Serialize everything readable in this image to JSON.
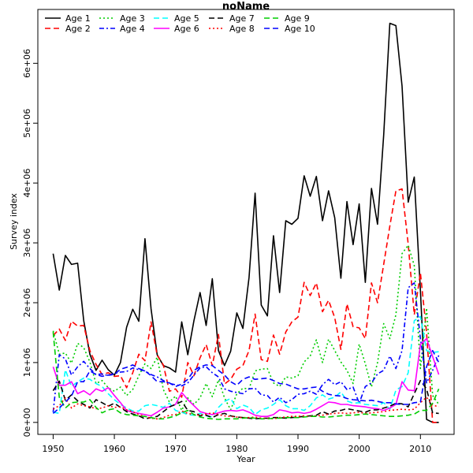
{
  "chart_data": {
    "type": "line",
    "title": "noName",
    "xlabel": "Year",
    "ylabel": "Survey index",
    "xlim": [
      1947.5,
      2015.5
    ],
    "ylim": [
      -200000,
      6900000
    ],
    "x_ticks": [
      1950,
      1960,
      1970,
      1980,
      1990,
      2000,
      2010
    ],
    "y_ticks": [
      0,
      1000000,
      2000000,
      3000000,
      4000000,
      5000000,
      6000000
    ],
    "y_tick_labels": [
      "0e+00",
      "1e+06",
      "2e+06",
      "3e+06",
      "4e+06",
      "5e+06",
      "6e+06"
    ],
    "x_start": 1950,
    "legend_position": "top-left",
    "series": [
      {
        "name": "Age 1",
        "color": "#000000",
        "dash": "solid",
        "values": [
          2820000,
          2210000,
          2790000,
          2640000,
          2660000,
          1700000,
          1140000,
          870000,
          1040000,
          880000,
          790000,
          1000000,
          1590000,
          1890000,
          1690000,
          3070000,
          1900000,
          1130000,
          950000,
          910000,
          840000,
          1680000,
          1130000,
          1700000,
          2170000,
          1620000,
          2400000,
          1200000,
          950000,
          1190000,
          1830000,
          1570000,
          2420000,
          3830000,
          1960000,
          1780000,
          3120000,
          2170000,
          3370000,
          3310000,
          3410000,
          4120000,
          3780000,
          4110000,
          3370000,
          3870000,
          3420000,
          2410000,
          3690000,
          2970000,
          3650000,
          2340000,
          3910000,
          3310000,
          4800000,
          6670000,
          6630000,
          5620000,
          3680000,
          4100000,
          2200000,
          50000,
          0,
          0
        ]
      },
      {
        "name": "Age 2",
        "color": "#ff0000",
        "dash": "dashed",
        "values": [
          1450000,
          1560000,
          1370000,
          1690000,
          1610000,
          1620000,
          1200000,
          970000,
          800000,
          830000,
          770000,
          780000,
          580000,
          830000,
          1140000,
          1030000,
          1680000,
          1120000,
          960000,
          520000,
          560000,
          420000,
          1000000,
          780000,
          1080000,
          1300000,
          950000,
          1470000,
          640000,
          720000,
          890000,
          950000,
          1200000,
          1810000,
          1050000,
          1020000,
          1460000,
          1140000,
          1510000,
          1680000,
          1760000,
          2340000,
          2120000,
          2330000,
          1850000,
          2040000,
          1750000,
          1220000,
          1980000,
          1600000,
          1580000,
          1400000,
          2330000,
          2000000,
          2640000,
          3280000,
          3870000,
          3900000,
          2980000,
          1800000,
          2500000,
          1500000,
          0,
          0
        ]
      },
      {
        "name": "Age 3",
        "color": "#00cd00",
        "dash": "dotted",
        "values": [
          1530000,
          1140000,
          1160000,
          990000,
          1320000,
          1250000,
          1010000,
          650000,
          700000,
          580000,
          520000,
          590000,
          450000,
          550000,
          780000,
          980000,
          900000,
          1090000,
          550000,
          340000,
          440000,
          200000,
          410000,
          300000,
          410000,
          650000,
          430000,
          710000,
          410000,
          210000,
          480000,
          570000,
          560000,
          860000,
          890000,
          900000,
          660000,
          600000,
          760000,
          740000,
          780000,
          1010000,
          1110000,
          1380000,
          1000000,
          1390000,
          1200000,
          1010000,
          870000,
          650000,
          1310000,
          980000,
          590000,
          1000000,
          1650000,
          1400000,
          1800000,
          2820000,
          2960000,
          2620000,
          900000,
          1910000,
          450000,
          300000
        ]
      },
      {
        "name": "Age 4",
        "color": "#0000ff",
        "dash": "dashdot",
        "values": [
          170000,
          1130000,
          1060000,
          790000,
          930000,
          1020000,
          900000,
          800000,
          810000,
          780000,
          820000,
          840000,
          850000,
          910000,
          880000,
          860000,
          800000,
          760000,
          700000,
          650000,
          630000,
          610000,
          660000,
          790000,
          910000,
          930000,
          830000,
          760000,
          560000,
          520000,
          500000,
          480000,
          560000,
          570000,
          460000,
          450000,
          340000,
          420000,
          330000,
          380000,
          470000,
          480000,
          520000,
          470000,
          630000,
          720000,
          630000,
          680000,
          550000,
          590000,
          320000,
          600000,
          660000,
          810000,
          870000,
          1110000,
          900000,
          1200000,
          2250000,
          2330000,
          1400000,
          660000,
          870000,
          1120000
        ]
      },
      {
        "name": "Age 5",
        "color": "#00ffff",
        "dash": "dashed",
        "values": [
          170000,
          150000,
          880000,
          600000,
          680000,
          740000,
          720000,
          650000,
          600000,
          480000,
          380000,
          300000,
          240000,
          190000,
          190000,
          280000,
          300000,
          280000,
          250000,
          320000,
          200000,
          170000,
          130000,
          120000,
          150000,
          110000,
          90000,
          250000,
          350000,
          400000,
          230000,
          290000,
          250000,
          130000,
          210000,
          240000,
          300000,
          380000,
          280000,
          230000,
          230000,
          200000,
          280000,
          410000,
          460000,
          390000,
          420000,
          510000,
          360000,
          320000,
          330000,
          300000,
          290000,
          280000,
          330000,
          220000,
          540000,
          600000,
          830000,
          1700000,
          1770000,
          1200000,
          1170000,
          1180000
        ]
      },
      {
        "name": "Age 6",
        "color": "#ff00ff",
        "dash": "solid",
        "values": [
          930000,
          620000,
          620000,
          680000,
          480000,
          530000,
          460000,
          560000,
          520000,
          580000,
          450000,
          330000,
          200000,
          170000,
          150000,
          130000,
          110000,
          170000,
          240000,
          260000,
          300000,
          500000,
          380000,
          280000,
          180000,
          150000,
          130000,
          160000,
          190000,
          200000,
          190000,
          210000,
          170000,
          120000,
          100000,
          100000,
          130000,
          210000,
          190000,
          160000,
          170000,
          150000,
          170000,
          220000,
          280000,
          340000,
          330000,
          300000,
          300000,
          280000,
          270000,
          260000,
          240000,
          230000,
          200000,
          240000,
          300000,
          680000,
          540000,
          530000,
          1300000,
          1400000,
          1100000,
          800000
        ]
      },
      {
        "name": "Age 7",
        "color": "#000000",
        "dash": "dashed",
        "values": [
          530000,
          690000,
          370000,
          460000,
          360000,
          300000,
          240000,
          380000,
          330000,
          270000,
          320000,
          250000,
          180000,
          140000,
          110000,
          60000,
          80000,
          100000,
          180000,
          260000,
          300000,
          350000,
          200000,
          180000,
          110000,
          120000,
          80000,
          130000,
          150000,
          110000,
          90000,
          80000,
          70000,
          60000,
          70000,
          70000,
          80000,
          80000,
          70000,
          80000,
          90000,
          100000,
          110000,
          120000,
          180000,
          140000,
          190000,
          200000,
          230000,
          210000,
          190000,
          170000,
          210000,
          210000,
          240000,
          270000,
          320000,
          310000,
          260000,
          480000,
          700000,
          560000,
          160000,
          150000
        ]
      },
      {
        "name": "Age 8",
        "color": "#ff0000",
        "dash": "dotted",
        "values": [
          220000,
          280000,
          410000,
          240000,
          310000,
          280000,
          260000,
          230000,
          240000,
          280000,
          250000,
          260000,
          210000,
          180000,
          130000,
          100000,
          70000,
          60000,
          80000,
          120000,
          130000,
          190000,
          150000,
          130000,
          120000,
          140000,
          160000,
          130000,
          110000,
          100000,
          90000,
          80000,
          80000,
          90000,
          70000,
          70000,
          60000,
          80000,
          90000,
          100000,
          100000,
          110000,
          100000,
          110000,
          120000,
          140000,
          150000,
          160000,
          150000,
          160000,
          170000,
          150000,
          160000,
          170000,
          180000,
          200000,
          210000,
          220000,
          210000,
          220000,
          330000,
          420000,
          290000,
          260000
        ]
      },
      {
        "name": "Age 9",
        "color": "#00cd00",
        "dash": "dashed",
        "values": [
          1510000,
          420000,
          240000,
          330000,
          340000,
          340000,
          380000,
          250000,
          160000,
          210000,
          230000,
          160000,
          130000,
          120000,
          110000,
          100000,
          80000,
          60000,
          60000,
          80000,
          110000,
          160000,
          200000,
          130000,
          90000,
          70000,
          60000,
          50000,
          60000,
          60000,
          60000,
          70000,
          80000,
          70000,
          60000,
          60000,
          70000,
          70000,
          80000,
          80000,
          80000,
          90000,
          100000,
          100000,
          90000,
          90000,
          100000,
          110000,
          120000,
          120000,
          130000,
          140000,
          130000,
          120000,
          110000,
          100000,
          100000,
          110000,
          120000,
          140000,
          200000,
          200000,
          320000,
          560000
        ]
      },
      {
        "name": "Age 10",
        "color": "#0000ff",
        "dash": "dashed",
        "values": [
          150000,
          240000,
          340000,
          440000,
          680000,
          680000,
          860000,
          800000,
          770000,
          790000,
          800000,
          890000,
          920000,
          960000,
          900000,
          860000,
          780000,
          680000,
          680000,
          660000,
          600000,
          640000,
          720000,
          870000,
          930000,
          960000,
          950000,
          870000,
          790000,
          680000,
          620000,
          720000,
          760000,
          720000,
          730000,
          740000,
          700000,
          650000,
          640000,
          600000,
          560000,
          560000,
          580000,
          590000,
          520000,
          470000,
          450000,
          440000,
          400000,
          380000,
          370000,
          360000,
          370000,
          350000,
          330000,
          330000,
          310000,
          300000,
          300000,
          330000,
          340000,
          930000,
          1200000,
          1000000
        ]
      }
    ]
  }
}
